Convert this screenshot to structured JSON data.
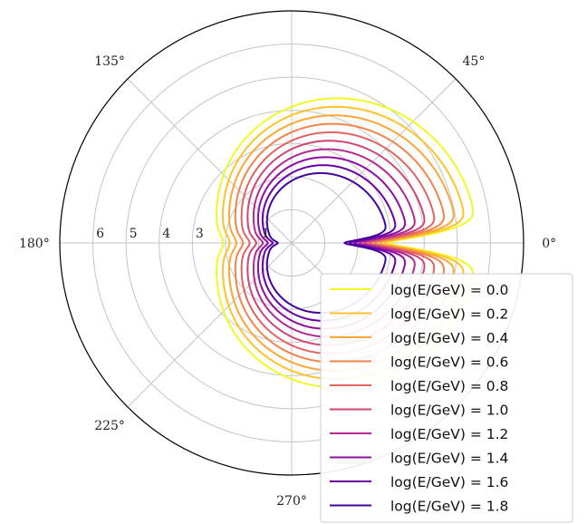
{
  "chart_data": {
    "type": "polar-line",
    "title": "",
    "theta_ticks": [
      "0°",
      "45°",
      "135°",
      "180°",
      "225°",
      "270°"
    ],
    "r_ticks": [
      "1",
      "3",
      "4",
      "5",
      "6"
    ],
    "r_tick_values": [
      1,
      3,
      4,
      5,
      6
    ],
    "rlim": [
      0,
      7
    ],
    "grid": true,
    "legend_position": "lower-right",
    "series": [
      {
        "name": "log(E/GeV) = 0.0",
        "color": "#f0f921",
        "rf": 5.6,
        "rb": 2.25,
        "notch": 2.95
      },
      {
        "name": "log(E/GeV) = 0.2",
        "color": "#fdc328",
        "rf": 5.3,
        "rb": 2.05,
        "notch": 2.8
      },
      {
        "name": "log(E/GeV) = 0.4",
        "color": "#fca636",
        "rf": 5.0,
        "rb": 1.85,
        "notch": 2.65
      },
      {
        "name": "log(E/GeV) = 0.6",
        "color": "#f2844b",
        "rf": 4.7,
        "rb": 1.65,
        "notch": 2.5
      },
      {
        "name": "log(E/GeV) = 0.8",
        "color": "#e16462",
        "rf": 4.4,
        "rb": 1.45,
        "notch": 2.35
      },
      {
        "name": "log(E/GeV) = 1.0",
        "color": "#cc4778",
        "rf": 4.1,
        "rb": 1.25,
        "notch": 2.2
      },
      {
        "name": "log(E/GeV) = 1.2",
        "color": "#b12a90",
        "rf": 3.8,
        "rb": 1.05,
        "notch": 2.05
      },
      {
        "name": "log(E/GeV) = 1.4",
        "color": "#8f0da4",
        "rf": 3.5,
        "rb": 0.9,
        "notch": 1.9
      },
      {
        "name": "log(E/GeV) = 1.6",
        "color": "#6a00a8",
        "rf": 3.2,
        "rb": 0.75,
        "notch": 1.75
      },
      {
        "name": "log(E/GeV) = 1.8",
        "color": "#41049d",
        "rf": 2.9,
        "rb": 0.6,
        "notch": 1.6
      }
    ]
  }
}
